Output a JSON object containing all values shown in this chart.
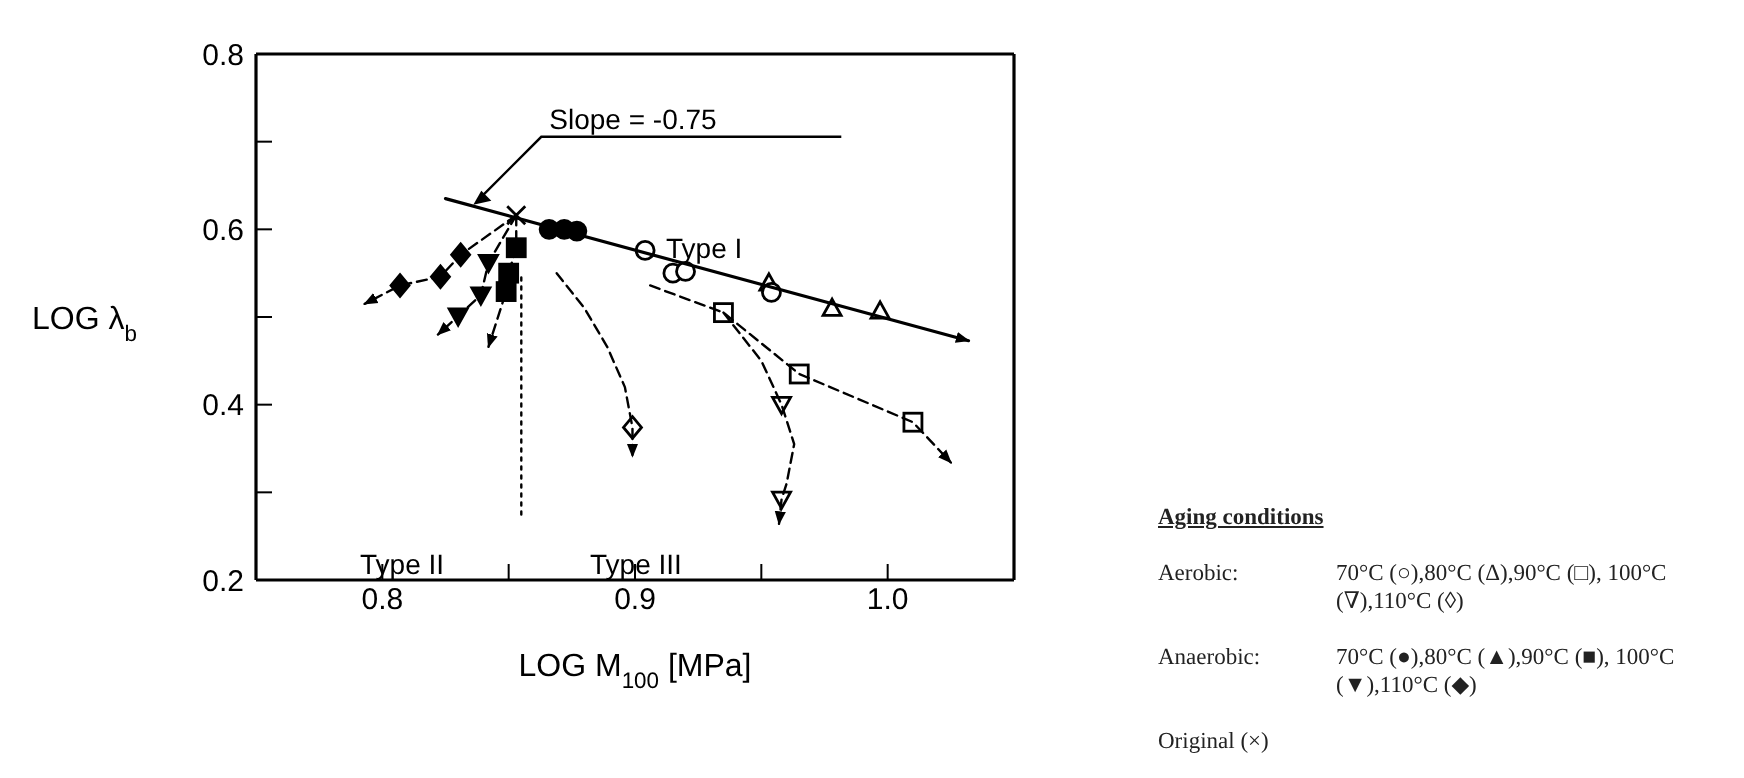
{
  "chart_data": {
    "type": "scatter",
    "xlabel": "LOG M$_{100}$ [MPa]",
    "ylabel": "LOG λ$_{b}$",
    "legend_title": "Aging conditions",
    "grid": false,
    "xlim": [
      0.75,
      1.05
    ],
    "xticks": [
      0.8,
      {
        "value": 0.85,
        "label": null
      },
      0.9,
      {
        "value": 0.95,
        "label": null
      },
      {
        "value": 1.0,
        "label": "1.0"
      }
    ],
    "ylim": [
      0.2,
      0.8
    ],
    "yticks": [
      0.2,
      {
        "value": 0.3,
        "label": null
      },
      0.4,
      {
        "value": 0.5,
        "label": null
      },
      0.6,
      {
        "value": 0.7,
        "label": null
      },
      0.8
    ],
    "annotations": [
      {
        "text": "Slope = -0.75",
        "x": 0.836,
        "y": 0.628
      },
      "Type I",
      "Type II",
      "Type III",
      "Aerobic:",
      "70°C (○),80°C (Δ),90°C (□), 100°C (∇),110°C (◊)",
      "Anaerobic:",
      "70°C (●),80°C (▲),90°C (■), 100°C (▼),110°C (◆)",
      "Original (×)"
    ],
    "series": [
      {
        "color": "#ffffff",
        "marker": "triangle",
        "x": [
          0.953,
          0.978,
          0.997
        ],
        "values": [
          0.539,
          0.51,
          0.507
        ]
      },
      {
        "color": "#ffffff",
        "marker": "circle",
        "x": [
          0.904,
          0.915,
          0.92,
          0.954
        ],
        "values": [
          0.576,
          0.55,
          0.552,
          0.528
        ]
      },
      {
        "color": "#ffffff",
        "marker": "square",
        "x": [
          0.935,
          0.965,
          1.01
        ],
        "values": [
          0.505,
          0.435,
          0.38
        ]
      },
      {
        "color": "#ffffff",
        "marker": "triangle-down",
        "x": [
          0.958,
          0.958
        ],
        "values": [
          0.4,
          0.292
        ]
      },
      {
        "color": "#ffffff",
        "marker": "diamond",
        "x": [
          0.899
        ],
        "values": [
          0.374
        ]
      },
      {
        "color": "#000000",
        "marker": "circle",
        "x": [
          0.866,
          0.872,
          0.877
        ],
        "values": [
          0.6,
          0.6,
          0.598
        ]
      },
      {
        "color": "#000000",
        "marker": "square",
        "x": [
          0.853,
          0.85,
          0.849
        ],
        "values": [
          0.579,
          0.55,
          0.529
        ]
      },
      {
        "color": "#000000",
        "marker": "triangle-down",
        "x": [
          0.842,
          0.839,
          0.83
        ],
        "values": [
          0.562,
          0.525,
          0.501
        ]
      },
      {
        "color": "#000000",
        "marker": "diamond",
        "x": [
          0.831,
          0.823,
          0.807
        ],
        "values": [
          0.571,
          0.546,
          0.536
        ]
      },
      {
        "color": "#000000",
        "marker": "cross",
        "x": [
          0.853
        ],
        "values": [
          0.616
        ]
      },
      {
        "type": "line",
        "color": "#000000",
        "line_style": "solid",
        "marker": "none",
        "x": [
          0.825,
          1.032
        ],
        "values": [
          0.635,
          0.473
        ]
      },
      {
        "type": "line",
        "color": "#000000",
        "line_style": "dashed",
        "marker": "none",
        "x": [
          0.906,
          0.935,
          0.965,
          1.01,
          1.025
        ],
        "values": [
          0.536,
          0.505,
          0.435,
          0.38,
          0.334
        ]
      },
      {
        "type": "line",
        "color": "#000000",
        "line_style": "dashed",
        "marker": "none",
        "x": [
          0.935,
          0.95,
          0.958,
          0.963,
          0.96,
          0.958,
          0.957
        ],
        "values": [
          0.505,
          0.45,
          0.4,
          0.355,
          0.31,
          0.292,
          0.264
        ]
      },
      {
        "type": "line",
        "color": "#000000",
        "line_style": "dashed",
        "marker": "none",
        "x": [
          0.869,
          0.88,
          0.889,
          0.896,
          0.899,
          0.899
        ],
        "values": [
          0.55,
          0.51,
          0.466,
          0.42,
          0.374,
          0.341
        ]
      },
      {
        "type": "line",
        "color": "#000000",
        "line_style": "dashed",
        "marker": "none",
        "x": [
          0.853,
          0.831,
          0.823,
          0.807,
          0.793
        ],
        "values": [
          0.616,
          0.571,
          0.546,
          0.536,
          0.515
        ]
      },
      {
        "type": "line",
        "color": "#000000",
        "line_style": "dashed",
        "marker": "none",
        "x": [
          0.853,
          0.842,
          0.839,
          0.83,
          0.822
        ],
        "values": [
          0.616,
          0.562,
          0.525,
          0.501,
          0.48
        ]
      },
      {
        "type": "line",
        "color": "#000000",
        "line_style": "dashed",
        "marker": "none",
        "x": [
          0.853,
          0.853,
          0.85,
          0.849,
          0.842
        ],
        "values": [
          0.616,
          0.579,
          0.55,
          0.529,
          0.466
        ]
      },
      {
        "type": "line",
        "color": "#000000",
        "line_style": "dotted",
        "marker": "none",
        "x": [
          0.855,
          0.855
        ],
        "values": [
          0.545,
          0.27
        ]
      }
    ]
  }
}
